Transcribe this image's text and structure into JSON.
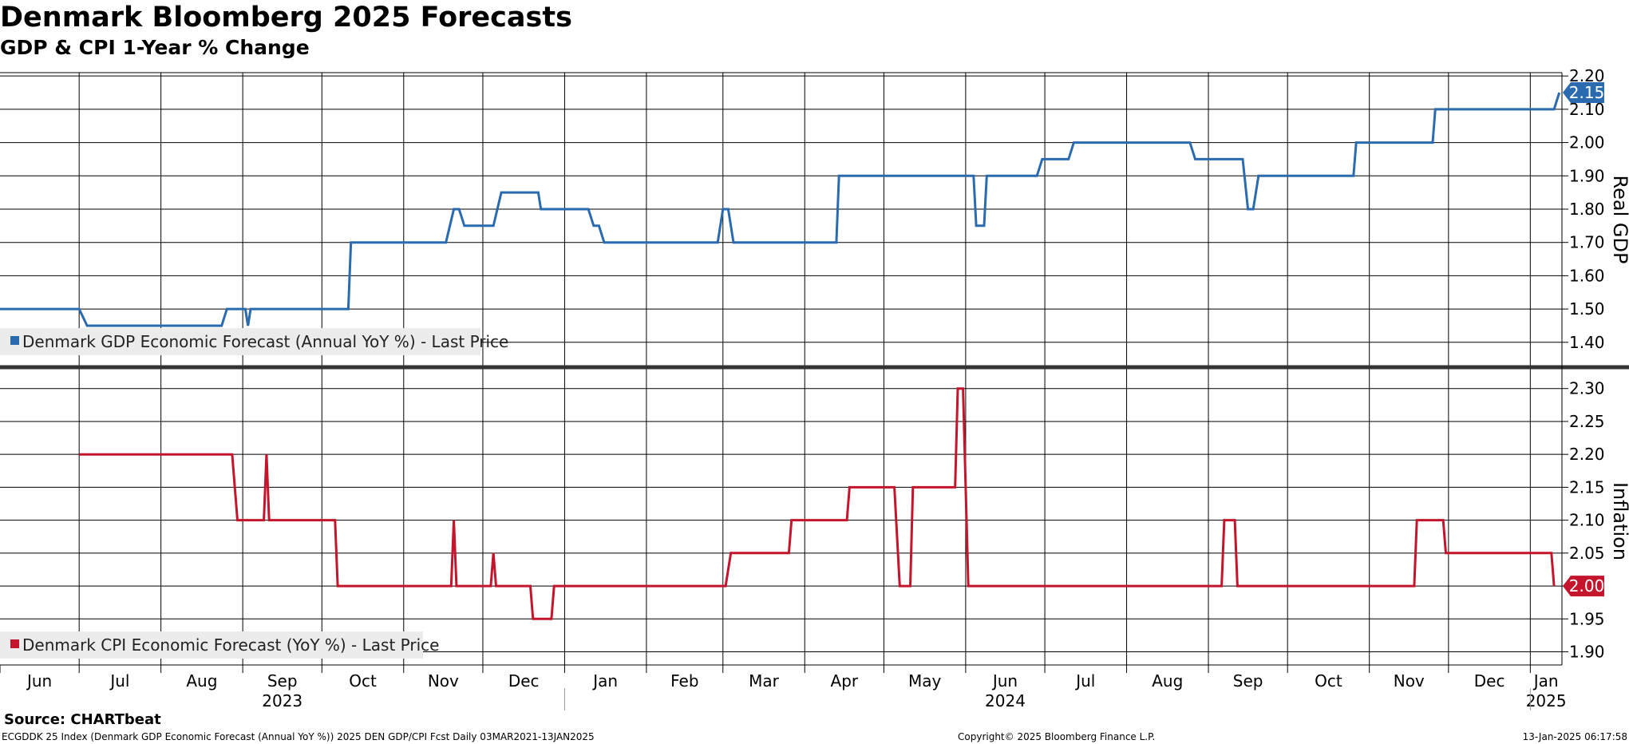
{
  "header": {
    "title": "Denmark Bloomberg 2025 Forecasts",
    "subtitle": "GDP & CPI 1-Year % Change"
  },
  "footer": {
    "source": "Source: CHARTbeat",
    "ticker": "ECGDDK 25 Index (Denmark GDP Economic Forecast (Annual YoY %)) 2025 DEN GDP/CPI Fcst  Daily 03MAR2021-13JAN2025",
    "copyright": "Copyright© 2025 Bloomberg Finance L.P.",
    "timestamp": "13-Jan-2025 06:17:58"
  },
  "colors": {
    "gdp": "#2a6bb0",
    "cpi": "#c4152c",
    "grid": "#000000",
    "legend_bg": "#ececec"
  },
  "chart_data": [
    {
      "type": "line",
      "x_axis": {
        "months": [
          "Jun",
          "Jul",
          "Aug",
          "Sep",
          "Oct",
          "Nov",
          "Dec",
          "Jan",
          "Feb",
          "Mar",
          "Apr",
          "May",
          "Jun",
          "Jul",
          "Aug",
          "Sep",
          "Oct",
          "Nov",
          "Dec",
          "Jan"
        ],
        "years": [
          {
            "label": "2023",
            "month": "Sep"
          },
          {
            "label": "2024",
            "month": "Jun"
          },
          {
            "label": "2025",
            "month": "Jan"
          }
        ],
        "range": [
          "2023-06-01",
          "2025-01-13"
        ]
      },
      "ylabel": "Real GDP",
      "ylim": [
        1.33,
        2.21
      ],
      "yticks": [
        "1.40",
        "1.50",
        "1.60",
        "1.70",
        "1.80",
        "1.90",
        "2.00",
        "2.10",
        "2.20"
      ],
      "last_value_label": "2.15",
      "grid": true,
      "legend_position": "bottom-left",
      "series": [
        {
          "name": "Denmark GDP Economic Forecast (Annual YoY %) - Last Price",
          "points": [
            [
              "2023-06-01",
              1.5
            ],
            [
              "2023-07-01",
              1.5
            ],
            [
              "2023-07-04",
              1.45
            ],
            [
              "2023-08-24",
              1.45
            ],
            [
              "2023-08-26",
              1.5
            ],
            [
              "2023-09-02",
              1.5
            ],
            [
              "2023-09-03",
              1.45
            ],
            [
              "2023-09-04",
              1.5
            ],
            [
              "2023-10-11",
              1.5
            ],
            [
              "2023-10-12",
              1.7
            ],
            [
              "2023-11-17",
              1.7
            ],
            [
              "2023-11-20",
              1.8
            ],
            [
              "2023-11-22",
              1.8
            ],
            [
              "2023-11-24",
              1.75
            ],
            [
              "2023-12-05",
              1.75
            ],
            [
              "2023-12-08",
              1.85
            ],
            [
              "2023-12-22",
              1.85
            ],
            [
              "2023-12-23",
              1.8
            ],
            [
              "2024-01-10",
              1.8
            ],
            [
              "2024-01-12",
              1.75
            ],
            [
              "2024-01-14",
              1.75
            ],
            [
              "2024-01-16",
              1.7
            ],
            [
              "2024-02-28",
              1.7
            ],
            [
              "2024-03-01",
              1.8
            ],
            [
              "2024-03-03",
              1.8
            ],
            [
              "2024-03-05",
              1.7
            ],
            [
              "2024-04-13",
              1.7
            ],
            [
              "2024-04-14",
              1.9
            ],
            [
              "2024-06-04",
              1.9
            ],
            [
              "2024-06-05",
              1.75
            ],
            [
              "2024-06-08",
              1.75
            ],
            [
              "2024-06-09",
              1.9
            ],
            [
              "2024-06-28",
              1.9
            ],
            [
              "2024-06-30",
              1.95
            ],
            [
              "2024-07-10",
              1.95
            ],
            [
              "2024-07-12",
              2.0
            ],
            [
              "2024-08-25",
              2.0
            ],
            [
              "2024-08-27",
              1.95
            ],
            [
              "2024-09-14",
              1.95
            ],
            [
              "2024-09-16",
              1.8
            ],
            [
              "2024-09-18",
              1.8
            ],
            [
              "2024-09-20",
              1.9
            ],
            [
              "2024-10-26",
              1.9
            ],
            [
              "2024-10-27",
              2.0
            ],
            [
              "2024-11-25",
              2.0
            ],
            [
              "2024-11-26",
              2.1
            ],
            [
              "2025-01-10",
              2.1
            ],
            [
              "2025-01-12",
              2.15
            ]
          ]
        }
      ]
    },
    {
      "type": "line",
      "ylabel": "Inflation",
      "ylim": [
        1.88,
        2.33
      ],
      "yticks": [
        "1.90",
        "1.95",
        "2.00",
        "2.05",
        "2.10",
        "2.15",
        "2.20",
        "2.25",
        "2.30"
      ],
      "last_value_label": "2.00",
      "grid": true,
      "legend_position": "bottom-left",
      "series": [
        {
          "name": "Denmark CPI Economic Forecast (YoY %) - Last Price",
          "points": [
            [
              "2023-07-01",
              2.2
            ],
            [
              "2023-08-28",
              2.2
            ],
            [
              "2023-08-30",
              2.1
            ],
            [
              "2023-09-09",
              2.1
            ],
            [
              "2023-09-10",
              2.2
            ],
            [
              "2023-09-11",
              2.1
            ],
            [
              "2023-10-06",
              2.1
            ],
            [
              "2023-10-07",
              2.0
            ],
            [
              "2023-11-19",
              2.0
            ],
            [
              "2023-11-20",
              2.1
            ],
            [
              "2023-11-21",
              2.0
            ],
            [
              "2023-12-04",
              2.0
            ],
            [
              "2023-12-05",
              2.05
            ],
            [
              "2023-12-06",
              2.0
            ],
            [
              "2023-12-19",
              2.0
            ],
            [
              "2023-12-20",
              1.95
            ],
            [
              "2023-12-27",
              1.95
            ],
            [
              "2023-12-28",
              2.0
            ],
            [
              "2024-03-02",
              2.0
            ],
            [
              "2024-03-04",
              2.05
            ],
            [
              "2024-03-26",
              2.05
            ],
            [
              "2024-03-27",
              2.1
            ],
            [
              "2024-04-17",
              2.1
            ],
            [
              "2024-04-18",
              2.15
            ],
            [
              "2024-05-05",
              2.15
            ],
            [
              "2024-05-07",
              2.0
            ],
            [
              "2024-05-11",
              2.0
            ],
            [
              "2024-05-12",
              2.15
            ],
            [
              "2024-05-28",
              2.15
            ],
            [
              "2024-05-29",
              2.3
            ],
            [
              "2024-05-31",
              2.3
            ],
            [
              "2024-06-02",
              2.0
            ],
            [
              "2024-09-06",
              2.0
            ],
            [
              "2024-09-07",
              2.1
            ],
            [
              "2024-09-11",
              2.1
            ],
            [
              "2024-09-12",
              2.0
            ],
            [
              "2024-11-18",
              2.0
            ],
            [
              "2024-11-19",
              2.1
            ],
            [
              "2024-11-29",
              2.1
            ],
            [
              "2024-11-30",
              2.05
            ],
            [
              "2025-01-09",
              2.05
            ],
            [
              "2025-01-10",
              2.0
            ]
          ]
        }
      ]
    }
  ]
}
